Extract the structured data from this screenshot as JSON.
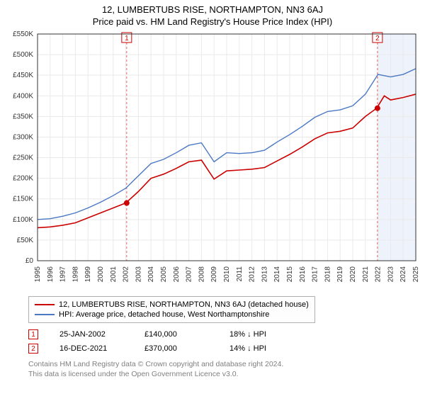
{
  "title": "12, LUMBERTUBS RISE, NORTHAMPTON, NN3 6AJ",
  "subtitle": "Price paid vs. HM Land Registry's House Price Index (HPI)",
  "chart": {
    "type": "line",
    "background_color": "#ffffff",
    "plot_border_color": "#333333",
    "grid_color": "#e9e9e9",
    "highlight_band_color": "#eef3fb",
    "shade_after_year": 2022,
    "ylabel_prefix": "£",
    "ylabel_suffix": "K",
    "ylim": [
      0,
      550
    ],
    "ytick_step": 50,
    "xlim": [
      1995,
      2025
    ],
    "xtick_step": 1,
    "tick_font_size": 10,
    "tick_color": "#333333",
    "series": [
      {
        "name": "property",
        "label": "12, LUMBERTUBS RISE, NORTHAMPTON, NN3 6AJ (detached house)",
        "color": "#cc0000",
        "width": 1.6,
        "points": [
          [
            1995,
            80
          ],
          [
            1996,
            82
          ],
          [
            1997,
            86
          ],
          [
            1998,
            92
          ],
          [
            1999,
            104
          ],
          [
            2000,
            116
          ],
          [
            2001,
            128
          ],
          [
            2002,
            140
          ],
          [
            2003,
            168
          ],
          [
            2004,
            200
          ],
          [
            2005,
            210
          ],
          [
            2006,
            224
          ],
          [
            2007,
            240
          ],
          [
            2008,
            244
          ],
          [
            2009,
            198
          ],
          [
            2010,
            218
          ],
          [
            2011,
            220
          ],
          [
            2012,
            222
          ],
          [
            2013,
            226
          ],
          [
            2014,
            242
          ],
          [
            2015,
            258
          ],
          [
            2016,
            276
          ],
          [
            2017,
            296
          ],
          [
            2018,
            310
          ],
          [
            2019,
            314
          ],
          [
            2020,
            322
          ],
          [
            2021,
            350
          ],
          [
            2021.9,
            370
          ],
          [
            2022.5,
            400
          ],
          [
            2023,
            390
          ],
          [
            2024,
            396
          ],
          [
            2025,
            404
          ]
        ]
      },
      {
        "name": "hpi",
        "label": "HPI: Average price, detached house, West Northamptonshire",
        "color": "#4a78c4",
        "width": 1.4,
        "points": [
          [
            1995,
            100
          ],
          [
            1996,
            102
          ],
          [
            1997,
            108
          ],
          [
            1998,
            116
          ],
          [
            1999,
            128
          ],
          [
            2000,
            142
          ],
          [
            2001,
            158
          ],
          [
            2002,
            176
          ],
          [
            2003,
            206
          ],
          [
            2004,
            236
          ],
          [
            2005,
            246
          ],
          [
            2006,
            262
          ],
          [
            2007,
            280
          ],
          [
            2008,
            286
          ],
          [
            2009,
            240
          ],
          [
            2010,
            262
          ],
          [
            2011,
            260
          ],
          [
            2012,
            262
          ],
          [
            2013,
            268
          ],
          [
            2014,
            288
          ],
          [
            2015,
            306
          ],
          [
            2016,
            326
          ],
          [
            2017,
            348
          ],
          [
            2018,
            362
          ],
          [
            2019,
            366
          ],
          [
            2020,
            376
          ],
          [
            2021,
            404
          ],
          [
            2022,
            452
          ],
          [
            2023,
            446
          ],
          [
            2024,
            452
          ],
          [
            2025,
            466
          ]
        ]
      }
    ],
    "markers": [
      {
        "n": 1,
        "year": 2002.07,
        "value": 140,
        "color": "#cc0000",
        "band_color": "#f0d9d9"
      },
      {
        "n": 2,
        "year": 2021.96,
        "value": 370,
        "color": "#cc0000",
        "band_color": "#f0d9d9"
      }
    ],
    "marker_vline_dash": "3,3"
  },
  "legend": {
    "items": [
      {
        "color": "#cc0000",
        "label": "12, LUMBERTUBS RISE, NORTHAMPTON, NN3 6AJ (detached house)"
      },
      {
        "color": "#4a78c4",
        "label": "HPI: Average price, detached house, West Northamptonshire"
      }
    ]
  },
  "marker_table": {
    "rows": [
      {
        "n": "1",
        "border": "#cc0000",
        "date": "25-JAN-2002",
        "price": "£140,000",
        "delta": "18% ↓ HPI"
      },
      {
        "n": "2",
        "border": "#cc0000",
        "date": "16-DEC-2021",
        "price": "£370,000",
        "delta": "14% ↓ HPI"
      }
    ]
  },
  "footer": {
    "line1": "Contains HM Land Registry data © Crown copyright and database right 2024.",
    "line2": "This data is licensed under the Open Government Licence v3.0."
  }
}
